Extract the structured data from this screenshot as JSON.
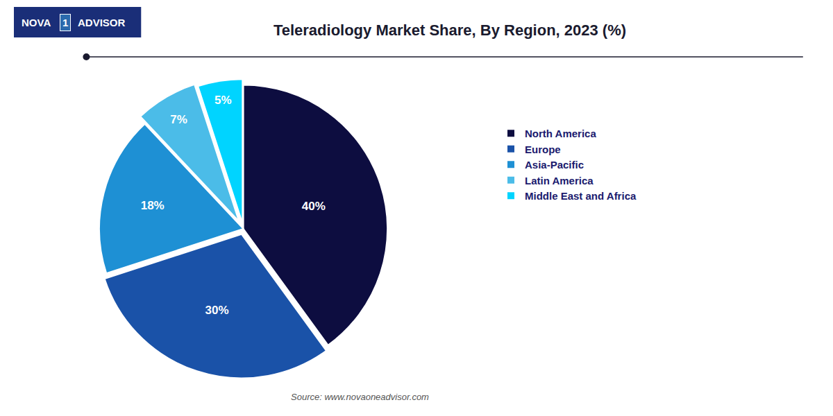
{
  "chart_data": {
    "type": "pie",
    "title": "Teleradiology Market Share, By Region, 2023 (%)",
    "categories": [
      "North America",
      "Europe",
      "Asia-Pacific",
      "Latin America",
      "Middle East and Africa"
    ],
    "values": [
      40,
      30,
      18,
      7,
      5
    ],
    "value_labels": [
      "40%",
      "30%",
      "18%",
      "7%",
      "5%"
    ],
    "colors": [
      "#0d0d40",
      "#1a52a8",
      "#1e90d4",
      "#4bbce8",
      "#00d4ff"
    ],
    "data_labels": true,
    "legend": "right",
    "annotations": [
      "Source: www.novaoneadvisor.com",
      "NOVA",
      "1",
      "ADVISOR"
    ]
  }
}
